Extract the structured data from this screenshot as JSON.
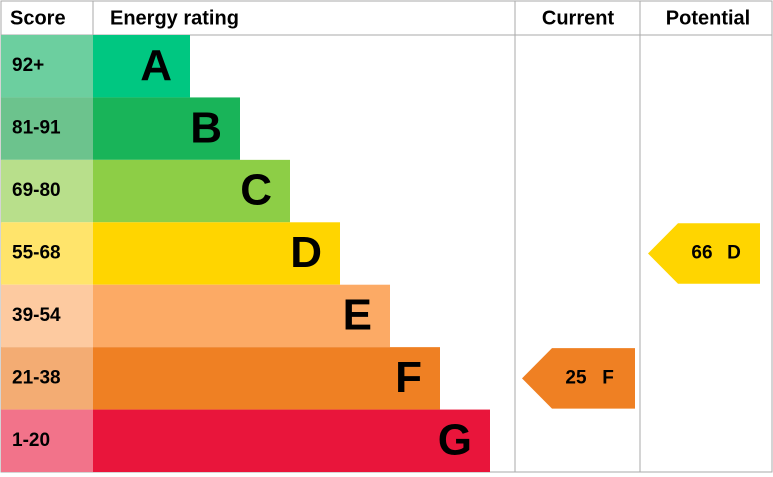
{
  "header": {
    "score": "Score",
    "rating": "Energy rating",
    "current": "Current",
    "potential": "Potential"
  },
  "bands": [
    {
      "score": "92+",
      "letter": "A",
      "color": "#00c781",
      "score_color": "#6ccf9f"
    },
    {
      "score": "81-91",
      "letter": "B",
      "color": "#19b459",
      "score_color": "#6cc38d"
    },
    {
      "score": "69-80",
      "letter": "C",
      "color": "#8dce46",
      "score_color": "#b8df8b"
    },
    {
      "score": "55-68",
      "letter": "D",
      "color": "#ffd500",
      "score_color": "#ffe46b"
    },
    {
      "score": "39-54",
      "letter": "E",
      "color": "#fcaa65",
      "score_color": "#fdcaa0"
    },
    {
      "score": "21-38",
      "letter": "F",
      "color": "#ef8023",
      "score_color": "#f3ac73"
    },
    {
      "score": "1-20",
      "letter": "G",
      "color": "#e9153b",
      "score_color": "#f2738a"
    }
  ],
  "current": {
    "value": 25,
    "letter": "F",
    "color": "#ef8023"
  },
  "potential": {
    "value": 66,
    "letter": "D",
    "color": "#ffd500"
  }
}
